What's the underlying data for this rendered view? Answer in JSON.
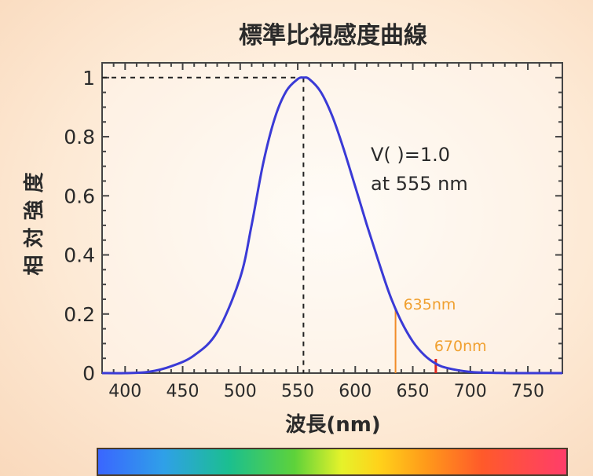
{
  "chart_data": {
    "type": "line",
    "title": "標準比視感度曲線",
    "xlabel": "波長(nm)",
    "ylabel": "相 対 強 度",
    "xlim": [
      380,
      780
    ],
    "ylim": [
      0,
      1.05
    ],
    "x_ticks": [
      "400",
      "450",
      "500",
      "550",
      "600",
      "650",
      "700",
      "750"
    ],
    "y_ticks": [
      "0",
      "0.2",
      "0.4",
      "0.6",
      "0.8",
      "1"
    ],
    "grid": false,
    "series": [
      {
        "color": "#3a3ad6",
        "x": [
          380,
          400,
          420,
          440,
          460,
          480,
          500,
          510,
          520,
          530,
          540,
          550,
          555,
          560,
          570,
          580,
          590,
          600,
          610,
          620,
          630,
          640,
          650,
          660,
          670,
          680,
          700,
          720,
          740,
          760,
          780
        ],
        "y": [
          0.0,
          0.0,
          0.004,
          0.023,
          0.06,
          0.139,
          0.323,
          0.503,
          0.71,
          0.862,
          0.954,
          0.995,
          1.0,
          0.995,
          0.952,
          0.87,
          0.757,
          0.631,
          0.503,
          0.381,
          0.265,
          0.175,
          0.107,
          0.061,
          0.032,
          0.017,
          0.004,
          0.001,
          0.0,
          0.0,
          0.0
        ]
      }
    ],
    "peak": {
      "x": 555,
      "y": 1.0
    },
    "annotation_line1": "V(   )=1.0",
    "annotation_line2": "at 555 nm",
    "markers": [
      {
        "x": 635,
        "y": 0.22,
        "label": "635nm",
        "label_color": "#f0a030",
        "line_color": "#f28c28"
      },
      {
        "x": 670,
        "y": 0.032,
        "label": "670nm",
        "label_color": "#f0a030",
        "line_color": "#e0281e"
      }
    ]
  }
}
